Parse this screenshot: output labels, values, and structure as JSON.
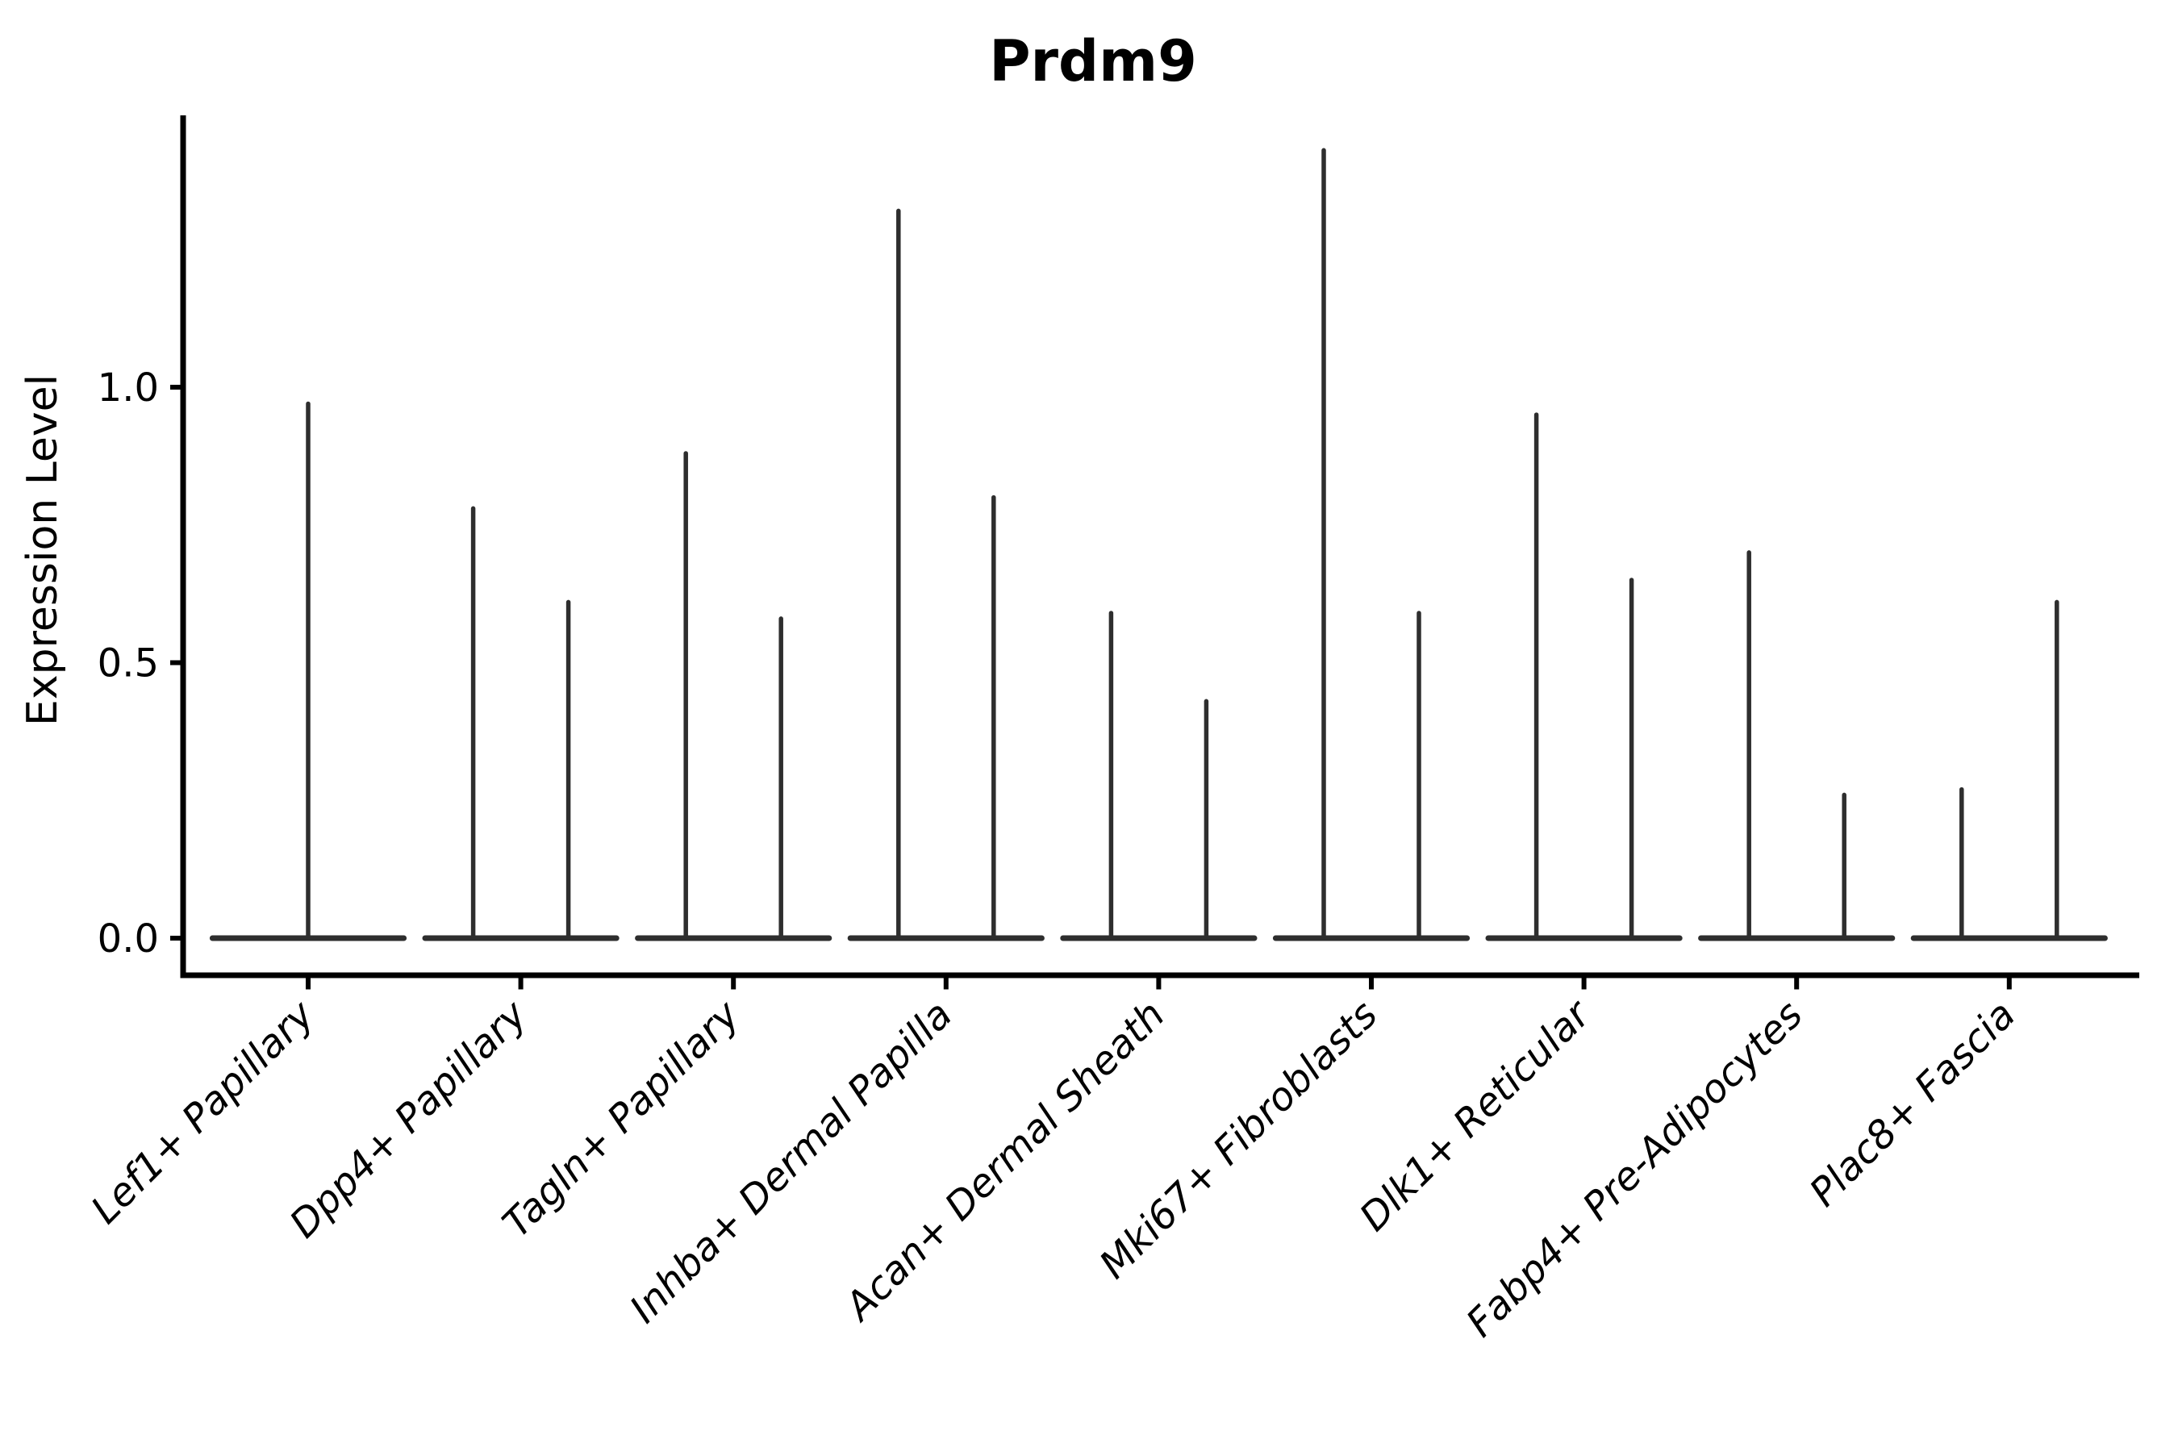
{
  "chart_data": {
    "type": "violin",
    "title": "Prdm9",
    "ylabel": "Expression Level",
    "yticks": [
      0.0,
      0.5,
      1.0
    ],
    "ytick_labels": [
      "0.0",
      "0.5",
      "1.0"
    ],
    "ylim": [
      -0.07,
      1.49
    ],
    "grid": false,
    "legend": "none",
    "axis_color": "#000000",
    "violin_color": "#2e2e2e",
    "categories": [
      "Lef1+ Papillary",
      "Dpp4+ Papillary",
      "Tagln+ Papillary",
      "Inhba+ Dermal Papilla",
      "Acan+ Dermal Sheath",
      "Mki67+ Fibroblasts",
      "Dlk1+ Reticular",
      "Fabp4+ Pre-Adipocytes",
      "Plac8+ Fascia"
    ],
    "violins": [
      {
        "category": "Lef1+ Papillary",
        "spike_offsets": [
          0
        ],
        "spike_max_values": [
          0.97
        ]
      },
      {
        "category": "Dpp4+ Papillary",
        "spike_offsets": [
          -59,
          59
        ],
        "spike_max_values": [
          0.78,
          0.61
        ]
      },
      {
        "category": "Tagln+ Papillary",
        "spike_offsets": [
          -59,
          59
        ],
        "spike_max_values": [
          0.88,
          0.58
        ]
      },
      {
        "category": "Inhba+ Dermal Papilla",
        "spike_offsets": [
          -59,
          59
        ],
        "spike_max_values": [
          1.32,
          0.8
        ]
      },
      {
        "category": "Acan+ Dermal Sheath",
        "spike_offsets": [
          -59,
          59
        ],
        "spike_max_values": [
          0.59,
          0.43
        ]
      },
      {
        "category": "Mki67+ Fibroblasts",
        "spike_offsets": [
          -59,
          59
        ],
        "spike_max_values": [
          1.43,
          0.59
        ]
      },
      {
        "category": "Dlk1+ Reticular",
        "spike_offsets": [
          -59,
          59
        ],
        "spike_max_values": [
          0.95,
          0.65
        ]
      },
      {
        "category": "Fabp4+ Pre-Adipocytes",
        "spike_offsets": [
          -59,
          59
        ],
        "spike_max_values": [
          0.7,
          0.26
        ]
      },
      {
        "category": "Plac8+ Fascia",
        "spike_offsets": [
          -59,
          59
        ],
        "spike_max_values": [
          0.27,
          0.61
        ]
      }
    ],
    "violin_note": "each violin collapses to a flat baseline at 0 with a thin needle up to its max value"
  }
}
